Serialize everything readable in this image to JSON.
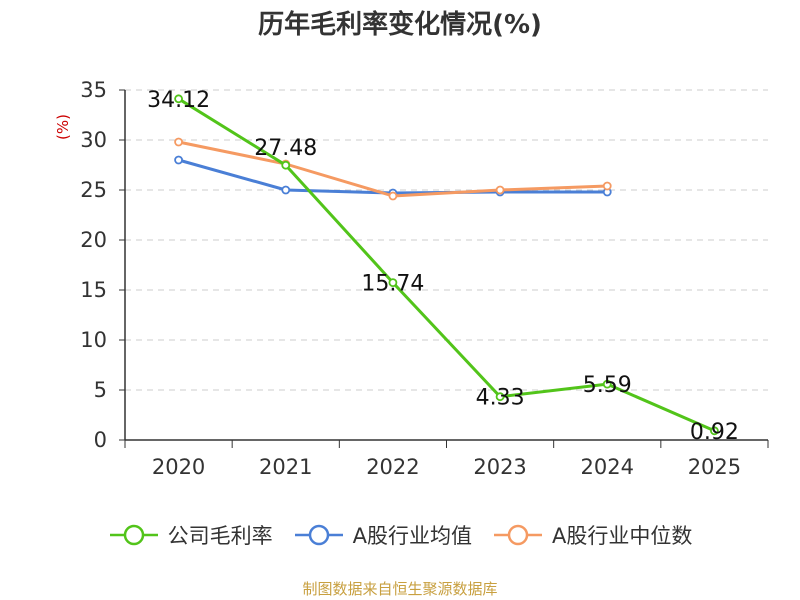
{
  "chart_data": {
    "type": "line",
    "title": "历年毛利率变化情况(%)",
    "ylabel": "(%)",
    "ylim": [
      0,
      35
    ],
    "yticks": [
      0,
      5,
      10,
      15,
      20,
      25,
      30,
      35
    ],
    "categories": [
      "2020",
      "2021",
      "2022",
      "2023",
      "2024",
      "2025"
    ],
    "grid": true,
    "legend_position": "bottom",
    "series": [
      {
        "name": "公司毛利率",
        "color": "#52c41a",
        "values": [
          34.12,
          27.48,
          15.74,
          4.33,
          5.59,
          0.92
        ],
        "labels": [
          "34.12",
          "27.48",
          "15.74",
          "4.33",
          "5.59",
          "0.92"
        ]
      },
      {
        "name": "A股行业均值",
        "color": "#4a7fd6",
        "values": [
          28.0,
          25.0,
          24.7,
          24.8,
          24.8,
          null
        ]
      },
      {
        "name": "A股行业中位数",
        "color": "#f59a62",
        "values": [
          29.8,
          27.6,
          24.4,
          25.0,
          25.4,
          null
        ]
      }
    ]
  },
  "source": "制图数据来自恒生聚源数据库"
}
